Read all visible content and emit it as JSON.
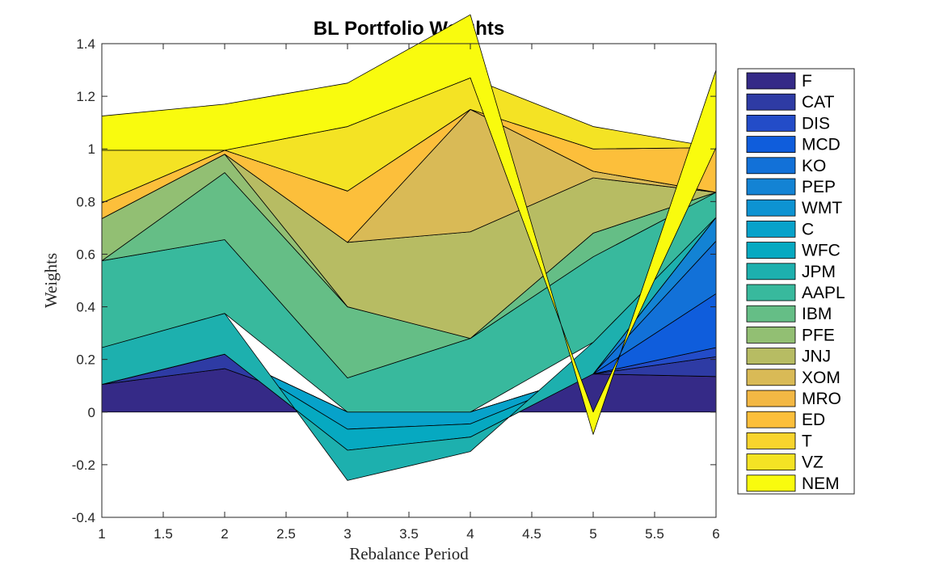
{
  "chart_data": {
    "type": "area",
    "title": "BL Portfolio Weights",
    "xlabel": "Rebalance Period",
    "ylabel": "Weights",
    "x": [
      1,
      2,
      3,
      4,
      5,
      6
    ],
    "xlim": [
      1,
      6
    ],
    "ylim": [
      -0.4,
      1.4
    ],
    "xticks": [
      "1",
      "1.5",
      "2",
      "2.5",
      "3",
      "3.5",
      "4",
      "4.5",
      "5",
      "5.5",
      "6"
    ],
    "yticks": [
      "-0.4",
      "-0.2",
      "0",
      "0.2",
      "0.4",
      "0.6",
      "0.8",
      "1",
      "1.2",
      "1.4"
    ],
    "grid": false,
    "legend_position": "outside-right",
    "series": [
      {
        "name": "F",
        "color": "#352a87",
        "values": [
          0.105,
          0.165,
          0.0,
          0.0,
          0.145,
          0.135
        ]
      },
      {
        "name": "CAT",
        "color": "#2e3ba4",
        "values": [
          0.0,
          0.055,
          0.0,
          0.0,
          0.0,
          0.075
        ]
      },
      {
        "name": "DIS",
        "color": "#234cc8",
        "values": [
          0.0,
          0.0,
          0.0,
          0.0,
          0.0,
          0.035
        ]
      },
      {
        "name": "MCD",
        "color": "#0f5ddc",
        "values": [
          0.0,
          0.0,
          0.0,
          0.0,
          0.0,
          0.205
        ]
      },
      {
        "name": "KO",
        "color": "#1271d8",
        "values": [
          0.0,
          0.0,
          0.0,
          0.0,
          0.0,
          0.2
        ]
      },
      {
        "name": "PEP",
        "color": "#1383d4",
        "values": [
          0.0,
          0.0,
          0.0,
          0.0,
          0.0,
          0.09
        ]
      },
      {
        "name": "WMT",
        "color": "#0d93d2",
        "values": [
          0.0,
          0.0,
          0.0,
          0.0,
          0.0,
          0.0
        ]
      },
      {
        "name": "C",
        "color": "#07a2ca",
        "values": [
          0.0,
          0.0,
          -0.065,
          -0.045,
          0.0,
          0.0
        ]
      },
      {
        "name": "WFC",
        "color": "#06a9c1",
        "values": [
          0.0,
          0.0,
          -0.08,
          -0.05,
          0.0,
          0.0
        ]
      },
      {
        "name": "JPM",
        "color": "#1db0ae",
        "values": [
          0.14,
          0.155,
          -0.115,
          -0.055,
          0.12,
          0.0
        ]
      },
      {
        "name": "AAPL",
        "color": "#38b99d",
        "values": [
          0.33,
          0.28,
          0.13,
          0.28,
          0.325,
          0.095
        ]
      },
      {
        "name": "IBM",
        "color": "#65be86",
        "values": [
          0.0,
          0.255,
          0.27,
          0.0,
          0.09,
          0.0
        ]
      },
      {
        "name": "PFE",
        "color": "#92bf73",
        "values": [
          0.16,
          0.07,
          0.0,
          0.0,
          0.0,
          0.0
        ]
      },
      {
        "name": "JNJ",
        "color": "#b7bc63",
        "values": [
          0.0,
          0.0,
          0.245,
          0.405,
          0.21,
          0.0
        ]
      },
      {
        "name": "XOM",
        "color": "#d9ba56",
        "values": [
          0.0,
          0.0,
          0.0,
          0.465,
          0.025,
          0.0
        ]
      },
      {
        "name": "MRO",
        "color": "#f3b844",
        "values": [
          0.0,
          0.0,
          0.0,
          0.0,
          0.0,
          0.0
        ]
      },
      {
        "name": "ED",
        "color": "#fcbf3b",
        "values": [
          0.06,
          0.015,
          0.195,
          0.0,
          0.085,
          0.17
        ]
      },
      {
        "name": "T",
        "color": "#f8d42d",
        "values": [
          0.0,
          0.0,
          0.0,
          0.0,
          0.0,
          0.0
        ]
      },
      {
        "name": "VZ",
        "color": "#f4e324",
        "values": [
          0.2,
          0.0,
          0.245,
          0.12,
          0.085,
          0.0
        ]
      },
      {
        "name": "NEM",
        "color": "#f9fb0e",
        "values": [
          0.13,
          0.175,
          0.165,
          0.24,
          -0.085,
          0.295
        ]
      }
    ]
  }
}
